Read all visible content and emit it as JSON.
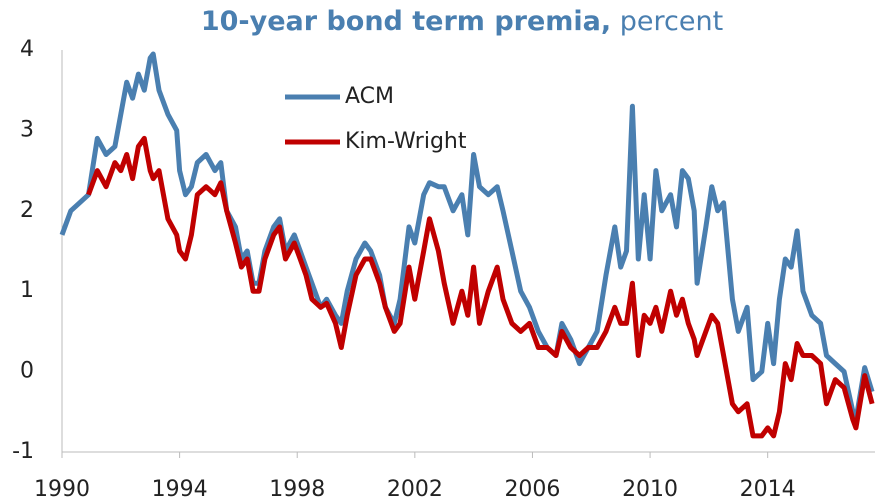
{
  "chart_data": {
    "type": "line",
    "title": "10-year bond term premia,",
    "subtitle": "percent",
    "xlim": [
      1990,
      2017.65
    ],
    "xticks": [
      1990,
      1994,
      1998,
      2002,
      2006,
      2010,
      2014
    ],
    "ylim": [
      -1,
      4
    ],
    "yticks": [
      -1,
      0,
      1,
      2,
      3,
      4
    ],
    "grid": false,
    "legend": "upper center",
    "x": [
      1990.0,
      1990.3,
      1990.6,
      1990.9,
      1991.2,
      1991.5,
      1991.8,
      1992.0,
      1992.2,
      1992.4,
      1992.6,
      1992.8,
      1993.0,
      1993.1,
      1993.3,
      1993.6,
      1993.9,
      1994.0,
      1994.2,
      1994.4,
      1994.6,
      1994.9,
      1995.2,
      1995.4,
      1995.6,
      1995.9,
      1996.1,
      1996.3,
      1996.5,
      1996.7,
      1996.9,
      1997.2,
      1997.4,
      1997.6,
      1997.9,
      1998.1,
      1998.3,
      1998.5,
      1998.8,
      1999.0,
      1999.3,
      1999.5,
      1999.7,
      2000.0,
      2000.3,
      2000.5,
      2000.8,
      2001.0,
      2001.3,
      2001.5,
      2001.8,
      2002.0,
      2002.3,
      2002.5,
      2002.8,
      2003.0,
      2003.3,
      2003.6,
      2003.8,
      2004.0,
      2004.2,
      2004.5,
      2004.8,
      2005.0,
      2005.3,
      2005.6,
      2005.9,
      2006.2,
      2006.5,
      2006.8,
      2007.0,
      2007.3,
      2007.6,
      2007.9,
      2008.2,
      2008.5,
      2008.8,
      2009.0,
      2009.2,
      2009.4,
      2009.6,
      2009.8,
      2010.0,
      2010.2,
      2010.4,
      2010.7,
      2010.9,
      2011.1,
      2011.3,
      2011.5,
      2011.6,
      2011.9,
      2012.1,
      2012.3,
      2012.5,
      2012.8,
      2013.0,
      2013.3,
      2013.5,
      2013.8,
      2014.0,
      2014.2,
      2014.4,
      2014.6,
      2014.8,
      2015.0,
      2015.2,
      2015.5,
      2015.8,
      2016.0,
      2016.3,
      2016.6,
      2016.9,
      2017.0,
      2017.3,
      2017.55
    ],
    "series": [
      {
        "name": "ACM",
        "color": "#4a7fb0",
        "values": [
          1.7,
          2.0,
          2.1,
          2.2,
          2.9,
          2.7,
          2.8,
          3.2,
          3.6,
          3.4,
          3.7,
          3.5,
          3.9,
          3.95,
          3.5,
          3.2,
          3.0,
          2.5,
          2.2,
          2.3,
          2.6,
          2.7,
          2.5,
          2.6,
          2.0,
          1.8,
          1.4,
          1.5,
          1.1,
          1.1,
          1.5,
          1.8,
          1.9,
          1.5,
          1.7,
          1.5,
          1.3,
          1.1,
          0.8,
          0.9,
          0.7,
          0.6,
          1.0,
          1.4,
          1.6,
          1.5,
          1.2,
          0.8,
          0.6,
          0.9,
          1.8,
          1.6,
          2.2,
          2.35,
          2.3,
          2.3,
          2.0,
          2.2,
          1.7,
          2.7,
          2.3,
          2.2,
          2.3,
          2.0,
          1.5,
          1.0,
          0.8,
          0.5,
          0.3,
          0.2,
          0.6,
          0.4,
          0.1,
          0.3,
          0.5,
          1.2,
          1.8,
          1.3,
          1.5,
          3.3,
          1.4,
          2.2,
          1.4,
          2.5,
          2.0,
          2.2,
          1.8,
          2.5,
          2.4,
          2.0,
          1.1,
          1.8,
          2.3,
          2.0,
          2.1,
          0.9,
          0.5,
          0.8,
          -0.1,
          0.0,
          0.6,
          0.1,
          0.9,
          1.4,
          1.3,
          1.75,
          1.0,
          0.7,
          0.6,
          0.2,
          0.1,
          0.0,
          -0.5,
          -0.6,
          0.05,
          -0.25
        ]
      },
      {
        "name": "Kim-Wright",
        "color": "#c00000",
        "values": [
          null,
          null,
          null,
          2.2,
          2.5,
          2.3,
          2.6,
          2.5,
          2.7,
          2.4,
          2.8,
          2.9,
          2.5,
          2.4,
          2.5,
          1.9,
          1.7,
          1.5,
          1.4,
          1.7,
          2.2,
          2.3,
          2.2,
          2.35,
          2.0,
          1.6,
          1.3,
          1.4,
          1.0,
          1.0,
          1.4,
          1.7,
          1.8,
          1.4,
          1.6,
          1.4,
          1.2,
          0.9,
          0.8,
          0.85,
          0.6,
          0.3,
          0.7,
          1.2,
          1.4,
          1.4,
          1.1,
          0.8,
          0.5,
          0.6,
          1.3,
          0.9,
          1.5,
          1.9,
          1.5,
          1.1,
          0.6,
          1.0,
          0.7,
          1.3,
          0.6,
          1.0,
          1.3,
          0.9,
          0.6,
          0.5,
          0.6,
          0.3,
          0.3,
          0.2,
          0.5,
          0.3,
          0.2,
          0.3,
          0.3,
          0.5,
          0.8,
          0.6,
          0.6,
          1.1,
          0.2,
          0.7,
          0.6,
          0.8,
          0.5,
          1.0,
          0.7,
          0.9,
          0.6,
          0.4,
          0.2,
          0.5,
          0.7,
          0.6,
          0.2,
          -0.4,
          -0.5,
          -0.4,
          -0.8,
          -0.8,
          -0.7,
          -0.8,
          -0.5,
          0.1,
          -0.1,
          0.35,
          0.2,
          0.2,
          0.1,
          -0.4,
          -0.1,
          -0.2,
          -0.6,
          -0.7,
          -0.05,
          -0.4
        ]
      }
    ]
  }
}
